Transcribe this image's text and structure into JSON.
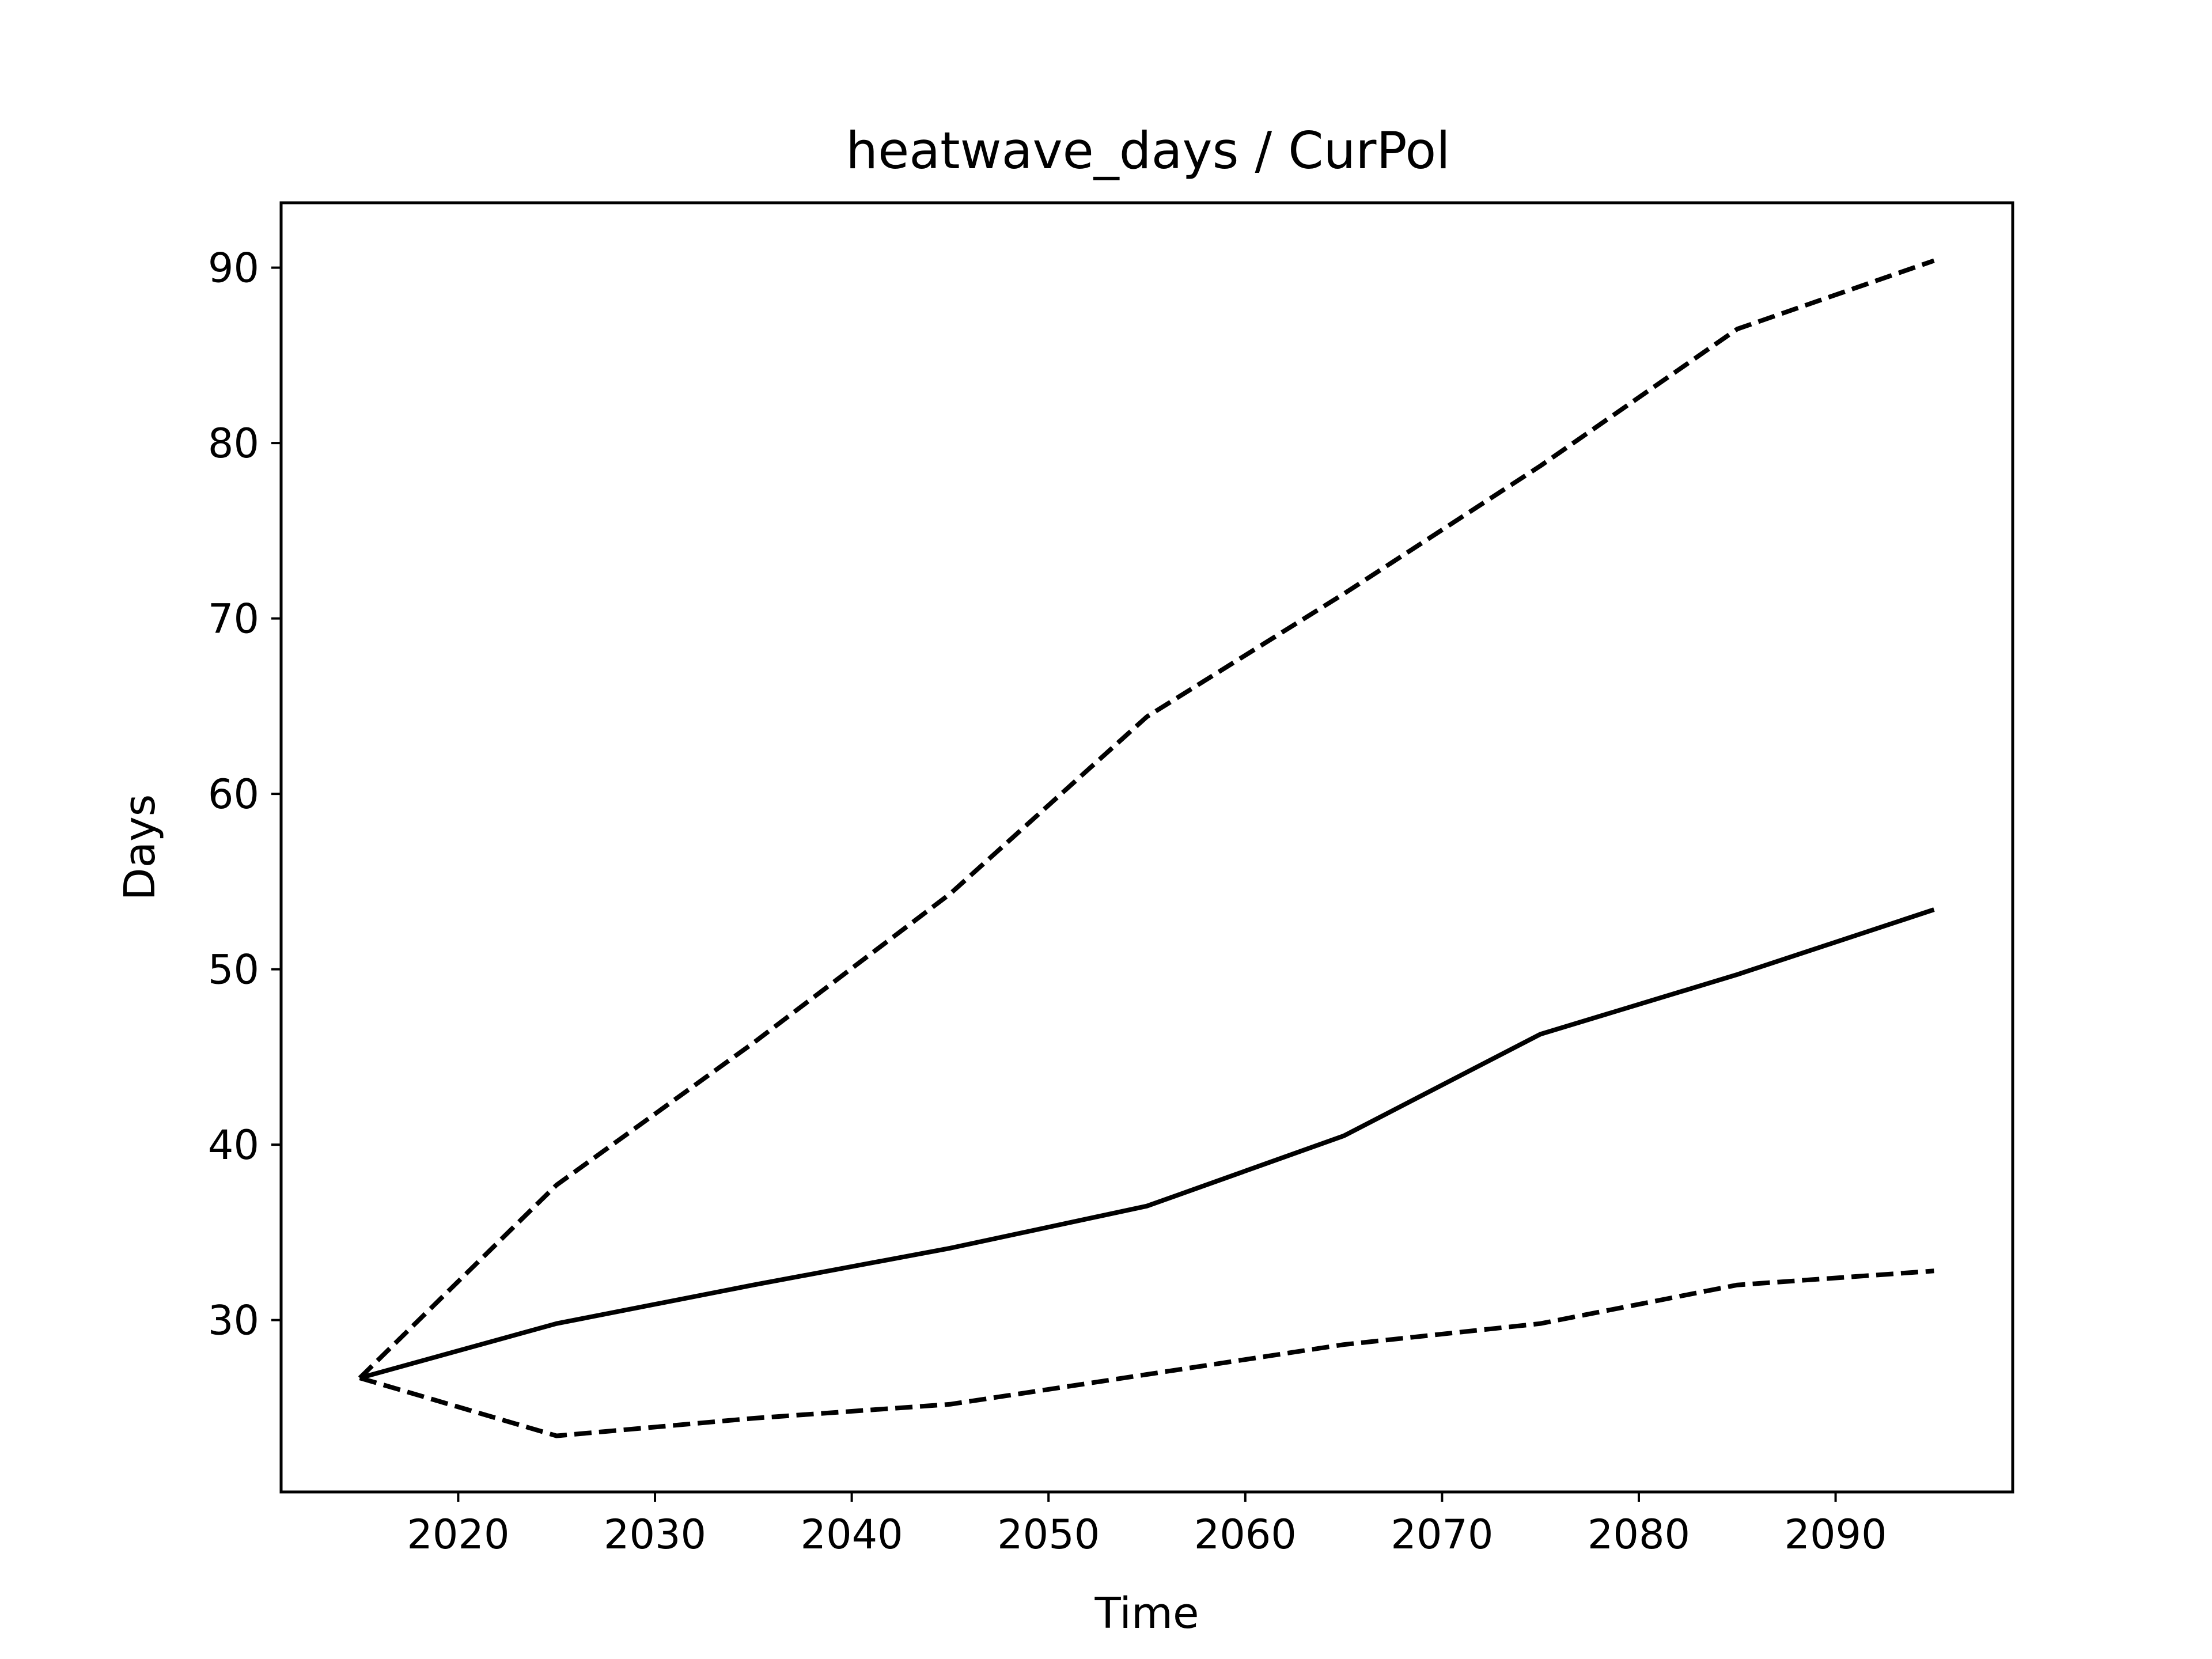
{
  "chart_data": {
    "type": "line",
    "title": "heatwave_days / CurPol",
    "xlabel": "Time",
    "ylabel": "Days",
    "xlim": [
      2011,
      2099
    ],
    "ylim": [
      20.2,
      93.7
    ],
    "grid": false,
    "x_ticks": [
      2020,
      2030,
      2040,
      2050,
      2060,
      2070,
      2080,
      2090
    ],
    "y_ticks": [
      30,
      40,
      50,
      60,
      70,
      80,
      90
    ],
    "x": [
      2015,
      2025,
      2035,
      2045,
      2055,
      2065,
      2075,
      2085,
      2095
    ],
    "series": [
      {
        "style": "solid",
        "color": "#000000",
        "values": [
          26.7,
          29.8,
          32.0,
          34.1,
          36.5,
          40.5,
          46.3,
          49.7,
          53.4
        ]
      },
      {
        "style": "dashed",
        "color": "#000000",
        "values": [
          26.7,
          37.7,
          45.8,
          54.3,
          64.4,
          71.4,
          78.7,
          86.5,
          90.4
        ]
      },
      {
        "style": "dashed",
        "color": "#000000",
        "values": [
          26.7,
          23.4,
          24.4,
          25.2,
          26.9,
          28.6,
          29.8,
          32.0,
          32.8
        ]
      }
    ]
  }
}
